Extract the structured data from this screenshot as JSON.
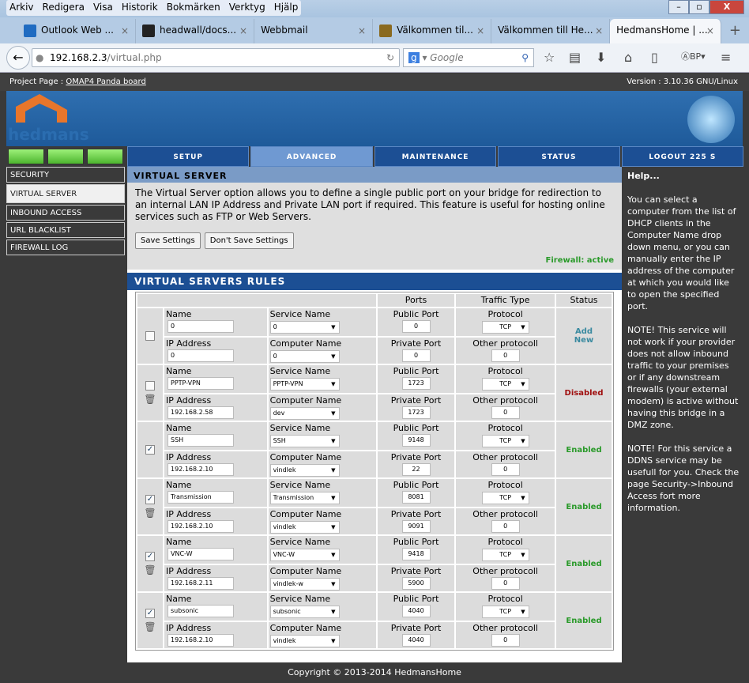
{
  "browser": {
    "menu": [
      "Arkiv",
      "Redigera",
      "Visa",
      "Historik",
      "Bokmärken",
      "Verktyg",
      "Hjälp"
    ],
    "tabs": [
      {
        "label": "Outlook Web ...",
        "icon": "outlook-icon"
      },
      {
        "label": "headwall/docs...",
        "icon": "github-icon"
      },
      {
        "label": "Webbmail",
        "icon": ""
      },
      {
        "label": "Välkommen til...",
        "icon": "j-icon"
      },
      {
        "label": "Välkommen till He...",
        "icon": ""
      },
      {
        "label": "HedmansHome | ...",
        "icon": "",
        "active": true
      }
    ],
    "url_host": "192.168.2.3",
    "url_path": "/virtual.php",
    "search_placeholder": "Google"
  },
  "project": {
    "label": "Project Page :",
    "link": "OMAP4 Panda board",
    "version": "Version : 3.10.36 GNU/Linux"
  },
  "logo": "hedmans",
  "topnav": [
    "SETUP",
    "ADVANCED",
    "MAINTENANCE",
    "STATUS",
    "LOGOUT 225 S"
  ],
  "sidebar": [
    "SECURITY",
    "VIRTUAL SERVER",
    "INBOUND ACCESS",
    "URL BLACKLIST",
    "FIREWALL LOG"
  ],
  "vs": {
    "title": "VIRTUAL SERVER",
    "desc": "The Virtual Server option allows you to define a single public port on your bridge for redirection to an internal LAN IP Address and Private LAN port if required. This feature is useful for hosting online services such as FTP or Web Servers.",
    "save": "Save Settings",
    "dont": "Don't Save Settings",
    "firewall": "Firewall: active"
  },
  "rules": {
    "title": "VIRTUAL SERVERS RULES",
    "headers": {
      "ports": "Ports",
      "traffic": "Traffic Type",
      "status": "Status"
    },
    "labels": {
      "name": "Name",
      "ip": "IP Address",
      "service": "Service Name",
      "computer": "Computer Name",
      "public": "Public Port",
      "private": "Private Port",
      "protocol": "Protocol",
      "other": "Other protocoll"
    },
    "rows": [
      {
        "checked": false,
        "trash": false,
        "name": "0",
        "ip": "0",
        "service": "0",
        "computer": "0",
        "public": "0",
        "private": "0",
        "protocol": "TCP",
        "other": "0",
        "status": "Add New",
        "status_color": "#3a8aa0"
      },
      {
        "checked": false,
        "trash": true,
        "name": "PPTP-VPN",
        "ip": "192.168.2.58",
        "service": "PPTP-VPN",
        "computer": "dev",
        "public": "1723",
        "private": "1723",
        "protocol": "TCP",
        "other": "0",
        "status": "Disabled",
        "status_color": "#a01010"
      },
      {
        "checked": true,
        "trash": false,
        "name": "SSH",
        "ip": "192.168.2.10",
        "service": "SSH",
        "computer": "vindlek",
        "public": "9148",
        "private": "22",
        "protocol": "TCP",
        "other": "0",
        "status": "Enabled",
        "status_color": "#2a9a2a"
      },
      {
        "checked": true,
        "trash": true,
        "name": "Transmission",
        "ip": "192.168.2.10",
        "service": "Transmission",
        "computer": "vindlek",
        "public": "8081",
        "private": "9091",
        "protocol": "TCP",
        "other": "0",
        "status": "Enabled",
        "status_color": "#2a9a2a"
      },
      {
        "checked": true,
        "trash": true,
        "name": "VNC-W",
        "ip": "192.168.2.11",
        "service": "VNC-W",
        "computer": "vindlek-w",
        "public": "9418",
        "private": "5900",
        "protocol": "TCP",
        "other": "0",
        "status": "Enabled",
        "status_color": "#2a9a2a"
      },
      {
        "checked": true,
        "trash": true,
        "name": "subsonic",
        "ip": "192.168.2.10",
        "service": "subsonic",
        "computer": "vindlek",
        "public": "4040",
        "private": "4040",
        "protocol": "TCP",
        "other": "0",
        "status": "Enabled",
        "status_color": "#2a9a2a"
      }
    ]
  },
  "help": {
    "title": "Help...",
    "paras": [
      "You can select a computer from the list of DHCP clients in the Computer Name drop down menu, or you can manually enter the IP address of the computer at which you would like to open the specified port.",
      "NOTE! This service will not work if your provider does not allow inbound traffic to your premises or if any downstream firewalls (your external modem) is active without having this bridge in a DMZ zone.",
      "NOTE! For this service a DDNS service may be usefull for you. Check the page Security->Inbound Access fort more information."
    ]
  },
  "footer": "Copyright © 2013-2014 HedmansHome"
}
